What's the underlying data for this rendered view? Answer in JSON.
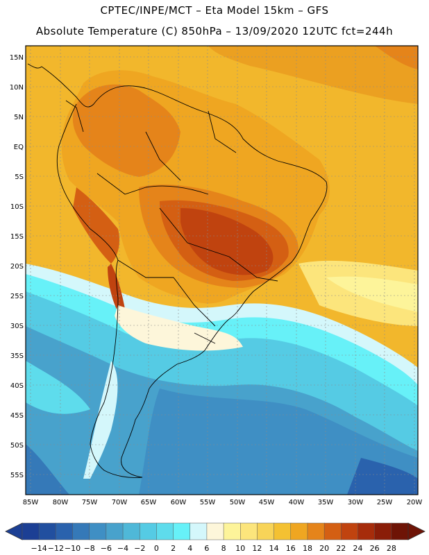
{
  "header": {
    "line1": "CPTEC/INPE/MCT –  Eta Model 15km – GFS",
    "line2": "Absolute Temperature (C) 850hPa – 13/09/2020 12UTC fct=244h"
  },
  "map": {
    "lat_labels": [
      "15N",
      "10N",
      "5N",
      "EQ",
      "5S",
      "10S",
      "15S",
      "20S",
      "25S",
      "30S",
      "35S",
      "40S",
      "45S",
      "50S",
      "55S"
    ],
    "lon_labels": [
      "85W",
      "80W",
      "75W",
      "70W",
      "65W",
      "60W",
      "55W",
      "50W",
      "45W",
      "40W",
      "35W",
      "30W",
      "25W",
      "20W"
    ]
  },
  "colorbar": {
    "labels": [
      "-14",
      "-12",
      "-10",
      "-8",
      "-6",
      "-4",
      "-2",
      "0",
      "2",
      "4",
      "6",
      "8",
      "10",
      "12",
      "14",
      "16",
      "18",
      "20",
      "22",
      "24",
      "26",
      "28"
    ],
    "colors": [
      "#1c3f94",
      "#214f9f",
      "#2a62ad",
      "#3579b8",
      "#3f8fc4",
      "#48a2cc",
      "#4fb8d8",
      "#55cbe4",
      "#5edcec",
      "#67f1f8",
      "#d4f7fb",
      "#fdf6da",
      "#fdf49a",
      "#fce57c",
      "#f8d458",
      "#f4c132",
      "#efa621",
      "#e5841a",
      "#d45f13",
      "#c0430f",
      "#a62c0b",
      "#8a1d08",
      "#6e1406"
    ]
  }
}
